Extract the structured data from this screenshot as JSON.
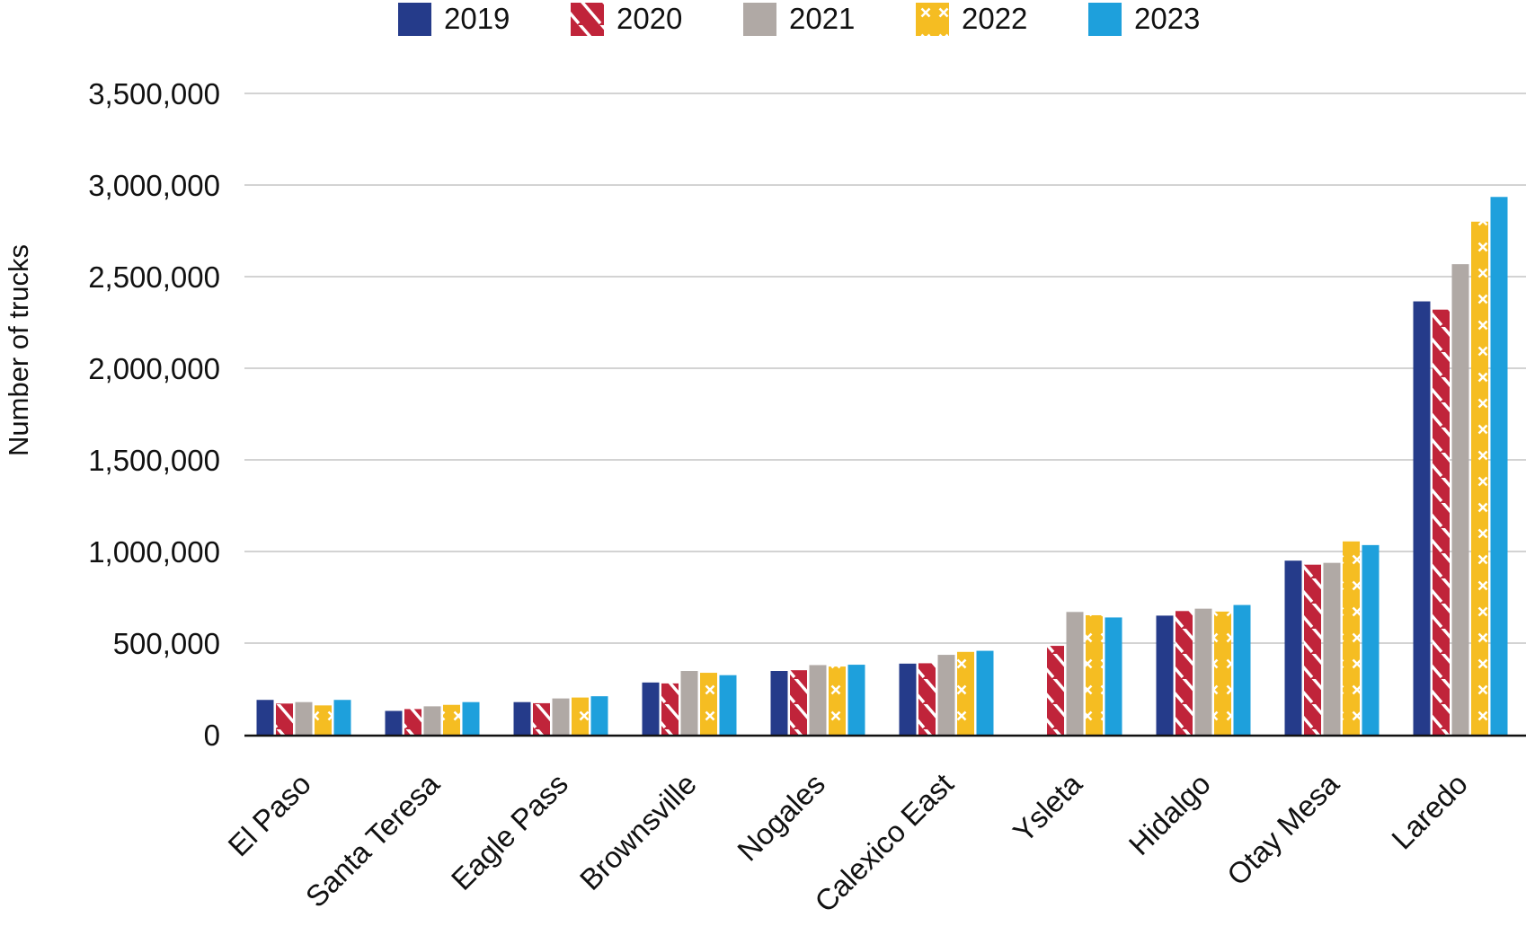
{
  "chart_data": {
    "type": "bar",
    "title": "",
    "xlabel": "",
    "ylabel": "Number of trucks",
    "ylim": [
      0,
      3500000
    ],
    "yticks": [
      0,
      500000,
      1000000,
      1500000,
      2000000,
      2500000,
      3000000,
      3500000
    ],
    "ytick_labels": [
      "0",
      "500,000",
      "1,000,000",
      "1,500,000",
      "2,000,000",
      "2,500,000",
      "3,000,000",
      "3,500,000"
    ],
    "grid": true,
    "legend_position": "top-center",
    "categories": [
      "El Paso",
      "Santa Teresa",
      "Eagle Pass",
      "Brownsville",
      "Nogales",
      "Calexico East",
      "Ysleta",
      "Hidalgo",
      "Otay Mesa",
      "Laredo"
    ],
    "series": [
      {
        "name": "2019",
        "color": "#253b8a",
        "pattern": "solid",
        "values": [
          190000,
          130000,
          178000,
          285000,
          348000,
          388000,
          null,
          650000,
          950000,
          2365000
        ]
      },
      {
        "name": "2020",
        "color": "#c0243a",
        "pattern": "diagonal-stripes",
        "values": [
          170000,
          140000,
          172000,
          280000,
          352000,
          390000,
          485000,
          675000,
          928000,
          2320000
        ]
      },
      {
        "name": "2021",
        "color": "#b0a9a5",
        "pattern": "solid",
        "values": [
          178000,
          155000,
          198000,
          348000,
          380000,
          436000,
          670000,
          688000,
          938000,
          2568000
        ]
      },
      {
        "name": "2022",
        "color": "#f5bd22",
        "pattern": "crosses",
        "values": [
          160000,
          163000,
          203000,
          338000,
          372000,
          452000,
          652000,
          672000,
          1055000,
          2800000
        ]
      },
      {
        "name": "2023",
        "color": "#1ea0dc",
        "pattern": "solid",
        "values": [
          190000,
          178000,
          210000,
          325000,
          382000,
          458000,
          640000,
          708000,
          1035000,
          2935000
        ]
      }
    ]
  }
}
